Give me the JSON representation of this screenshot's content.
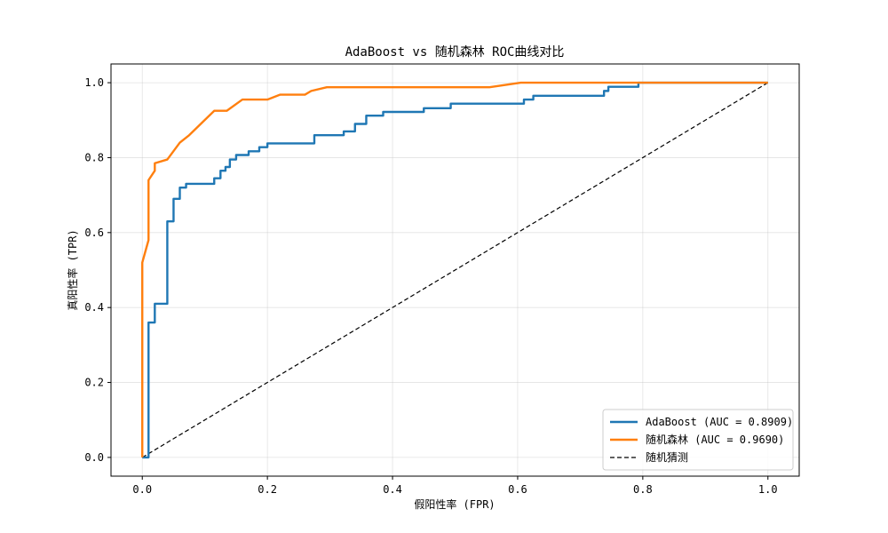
{
  "chart_data": {
    "type": "line",
    "title": "AdaBoost vs 随机森林 ROC曲线对比",
    "xlabel": "假阳性率 (FPR)",
    "ylabel": "真阳性率 (TPR)",
    "xlim": [
      -0.05,
      1.05
    ],
    "ylim": [
      -0.05,
      1.05
    ],
    "xticks": [
      0.0,
      0.2,
      0.4,
      0.6,
      0.8,
      1.0
    ],
    "yticks": [
      0.0,
      0.2,
      0.4,
      0.6,
      0.8,
      1.0
    ],
    "xtick_labels": [
      "0.0",
      "0.2",
      "0.4",
      "0.6",
      "0.8",
      "1.0"
    ],
    "ytick_labels": [
      "0.0",
      "0.2",
      "0.4",
      "0.6",
      "0.8",
      "1.0"
    ],
    "grid": true,
    "legend_position": "bottom-right",
    "series": [
      {
        "name": "AdaBoost (AUC = 0.8909)",
        "color": "#1f77b4",
        "style": "solid",
        "points": [
          [
            0.0,
            0.0
          ],
          [
            0.01,
            0.0
          ],
          [
            0.01,
            0.36
          ],
          [
            0.02,
            0.36
          ],
          [
            0.02,
            0.41
          ],
          [
            0.04,
            0.41
          ],
          [
            0.04,
            0.63
          ],
          [
            0.05,
            0.63
          ],
          [
            0.05,
            0.69
          ],
          [
            0.06,
            0.69
          ],
          [
            0.06,
            0.72
          ],
          [
            0.07,
            0.72
          ],
          [
            0.07,
            0.73
          ],
          [
            0.115,
            0.73
          ],
          [
            0.115,
            0.745
          ],
          [
            0.125,
            0.745
          ],
          [
            0.125,
            0.765
          ],
          [
            0.133,
            0.765
          ],
          [
            0.133,
            0.775
          ],
          [
            0.14,
            0.775
          ],
          [
            0.14,
            0.795
          ],
          [
            0.15,
            0.795
          ],
          [
            0.15,
            0.807
          ],
          [
            0.17,
            0.807
          ],
          [
            0.17,
            0.817
          ],
          [
            0.187,
            0.817
          ],
          [
            0.187,
            0.828
          ],
          [
            0.2,
            0.828
          ],
          [
            0.2,
            0.838
          ],
          [
            0.275,
            0.838
          ],
          [
            0.275,
            0.86
          ],
          [
            0.322,
            0.86
          ],
          [
            0.322,
            0.87
          ],
          [
            0.34,
            0.87
          ],
          [
            0.34,
            0.89
          ],
          [
            0.358,
            0.89
          ],
          [
            0.358,
            0.912
          ],
          [
            0.385,
            0.912
          ],
          [
            0.385,
            0.922
          ],
          [
            0.45,
            0.922
          ],
          [
            0.45,
            0.932
          ],
          [
            0.493,
            0.932
          ],
          [
            0.493,
            0.944
          ],
          [
            0.61,
            0.944
          ],
          [
            0.61,
            0.955
          ],
          [
            0.625,
            0.955
          ],
          [
            0.625,
            0.965
          ],
          [
            0.738,
            0.965
          ],
          [
            0.738,
            0.978
          ],
          [
            0.745,
            0.978
          ],
          [
            0.745,
            0.989
          ],
          [
            0.793,
            0.989
          ],
          [
            0.793,
            1.0
          ],
          [
            1.0,
            1.0
          ]
        ]
      },
      {
        "name": "随机森林 (AUC = 0.9690)",
        "color": "#ff7f0e",
        "style": "solid",
        "points": [
          [
            0.0,
            0.0
          ],
          [
            0.0,
            0.52
          ],
          [
            0.01,
            0.58
          ],
          [
            0.01,
            0.74
          ],
          [
            0.02,
            0.765
          ],
          [
            0.02,
            0.785
          ],
          [
            0.04,
            0.795
          ],
          [
            0.06,
            0.84
          ],
          [
            0.075,
            0.86
          ],
          [
            0.115,
            0.925
          ],
          [
            0.135,
            0.925
          ],
          [
            0.16,
            0.955
          ],
          [
            0.2,
            0.955
          ],
          [
            0.22,
            0.968
          ],
          [
            0.26,
            0.968
          ],
          [
            0.27,
            0.978
          ],
          [
            0.295,
            0.988
          ],
          [
            0.555,
            0.988
          ],
          [
            0.605,
            1.0
          ],
          [
            1.0,
            1.0
          ]
        ]
      },
      {
        "name": "随机猜测",
        "color": "#000000",
        "style": "dashed",
        "points": [
          [
            0.0,
            0.0
          ],
          [
            1.0,
            1.0
          ]
        ]
      }
    ]
  }
}
